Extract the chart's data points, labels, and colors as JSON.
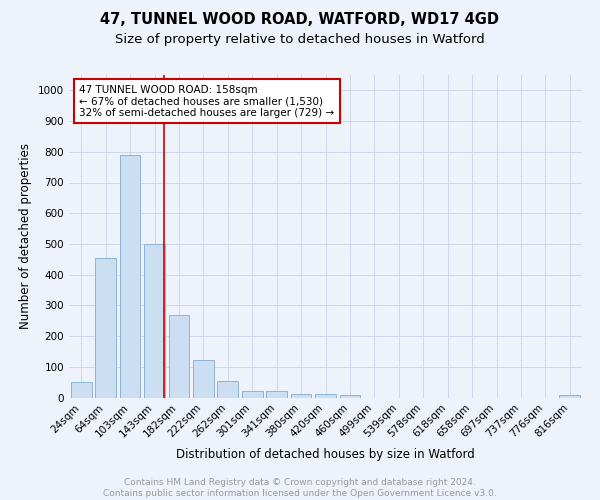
{
  "title_line1": "47, TUNNEL WOOD ROAD, WATFORD, WD17 4GD",
  "title_line2": "Size of property relative to detached houses in Watford",
  "xlabel": "Distribution of detached houses by size in Watford",
  "ylabel": "Number of detached properties",
  "bar_labels": [
    "24sqm",
    "64sqm",
    "103sqm",
    "143sqm",
    "182sqm",
    "222sqm",
    "262sqm",
    "301sqm",
    "341sqm",
    "380sqm",
    "420sqm",
    "460sqm",
    "499sqm",
    "539sqm",
    "578sqm",
    "618sqm",
    "658sqm",
    "697sqm",
    "737sqm",
    "776sqm",
    "816sqm"
  ],
  "bar_values": [
    50,
    455,
    790,
    500,
    270,
    122,
    55,
    22,
    22,
    12,
    12,
    8,
    0,
    0,
    0,
    0,
    0,
    0,
    0,
    0,
    8
  ],
  "bar_color": "#ccdff2",
  "bar_edgecolor": "#8ab4d8",
  "bar_linewidth": 0.7,
  "vline_x": 3.38,
  "vline_color": "#cc0000",
  "annotation_text": "47 TUNNEL WOOD ROAD: 158sqm\n← 67% of detached houses are smaller (1,530)\n32% of semi-detached houses are larger (729) →",
  "annotation_box_facecolor": "#ffffff",
  "annotation_box_edgecolor": "#cc0000",
  "ylim": [
    0,
    1050
  ],
  "yticks": [
    0,
    100,
    200,
    300,
    400,
    500,
    600,
    700,
    800,
    900,
    1000
  ],
  "grid_color": "#c8d4e8",
  "background_color": "#eef2fa",
  "footer_text": "Contains HM Land Registry data © Crown copyright and database right 2024.\nContains public sector information licensed under the Open Government Licence v3.0.",
  "footer_color": "#999999",
  "title_fontsize": 10.5,
  "subtitle_fontsize": 9.5,
  "label_fontsize": 8.5,
  "tick_fontsize": 7.5,
  "annotation_fontsize": 7.5,
  "footer_fontsize": 6.5
}
